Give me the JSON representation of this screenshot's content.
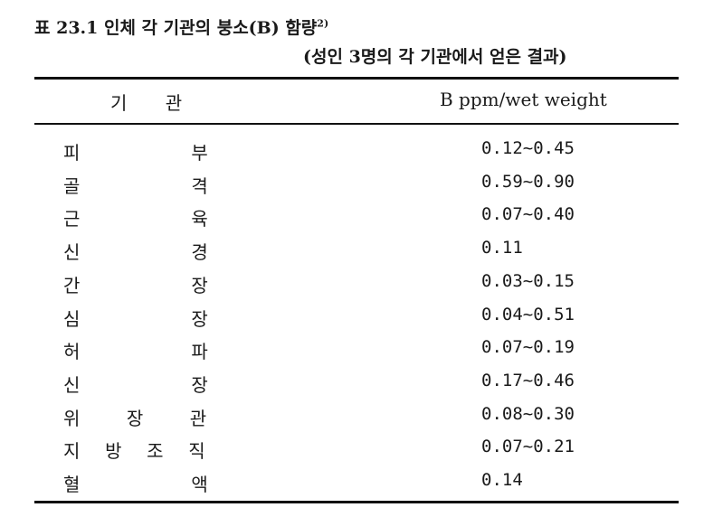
{
  "title": {
    "label": "표 23.1 인체 각 기관의 붕소(B) 함량",
    "footnote": "2)"
  },
  "subtitle": "(성인 3명의 각 기관에서 얻은 결과)",
  "headers": {
    "organ": "기 관",
    "value": "B ppm/wet weight"
  },
  "rows": [
    {
      "organ": "피부",
      "value": "0.12~0.45"
    },
    {
      "organ": "골격",
      "value": "0.59~0.90"
    },
    {
      "organ": "근육",
      "value": "0.07~0.40"
    },
    {
      "organ": "신경",
      "value": "0.11"
    },
    {
      "organ": "간장",
      "value": "0.03~0.15"
    },
    {
      "organ": "심장",
      "value": "0.04~0.51"
    },
    {
      "organ": "허파",
      "value": "0.07~0.19"
    },
    {
      "organ": "신장",
      "value": "0.17~0.46"
    },
    {
      "organ": "위장관",
      "value": "0.08~0.30"
    },
    {
      "organ": "지방조직",
      "value": "0.07~0.21"
    },
    {
      "organ": "혈액",
      "value": "0.14"
    }
  ]
}
